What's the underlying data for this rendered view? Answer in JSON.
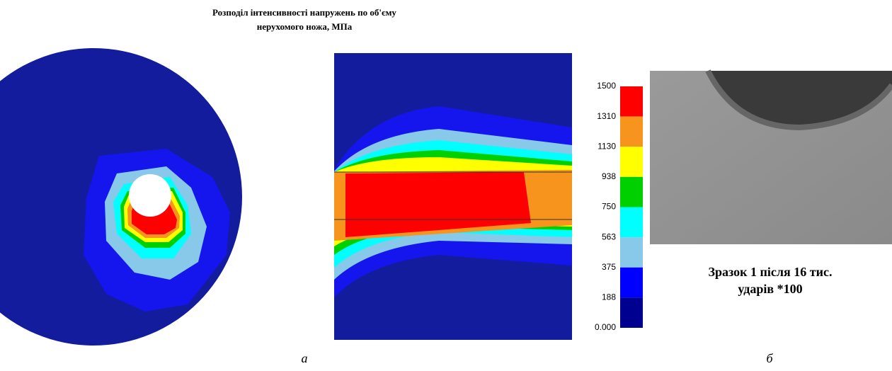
{
  "title": [
    "Розподіл інтенсивності напружень по об'єму",
    "нерухомого ножа, МПа"
  ],
  "scale": {
    "labels": [
      "1500",
      "1310",
      "1130",
      "938",
      "750",
      "563",
      "375",
      "188",
      "0.000"
    ],
    "colors": [
      "#ff0000",
      "#f7941d",
      "#ffff00",
      "#00d000",
      "#00ffff",
      "#88c8e8",
      "#0000ff",
      "#000090"
    ]
  },
  "caption": [
    "Зразок 1 після 16 тис.",
    "ударів *100"
  ],
  "panel_labels": [
    "а",
    "б"
  ]
}
